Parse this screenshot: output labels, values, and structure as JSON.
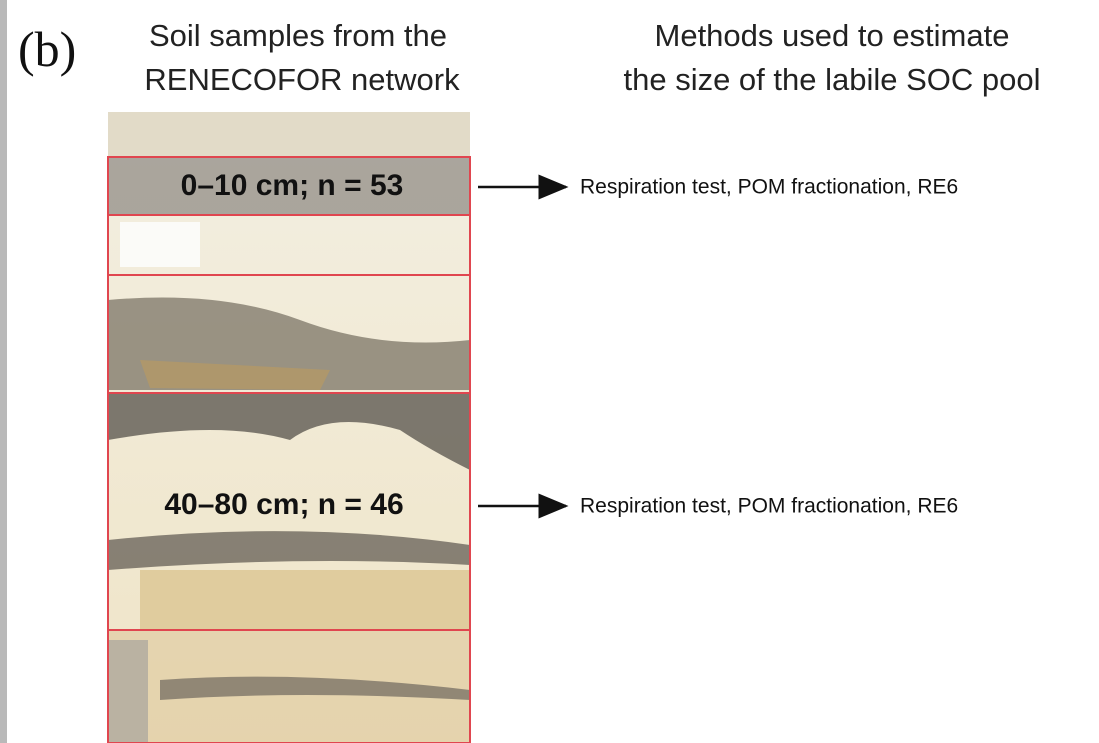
{
  "panel_label": "(b)",
  "headers": [
    {
      "lines": [
        "Soil samples from the",
        "RENECOFOR network"
      ]
    },
    {
      "lines": [
        "Methods used to estimate",
        "the size of the labile SOC pool"
      ]
    }
  ],
  "samples": [
    {
      "label": "0–10 cm; n = 53",
      "methods": "Respiration test, POM fractionation, RE6"
    },
    {
      "label": "40–80 cm; n = 46",
      "methods": "Respiration test, POM fractionation, RE6"
    }
  ]
}
